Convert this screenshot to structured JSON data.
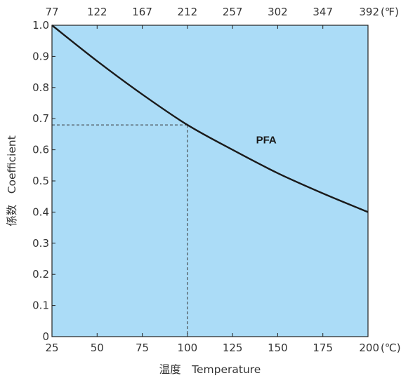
{
  "chart_data": {
    "type": "line",
    "xlabel": "温度　Temperature",
    "ylabel": "係数　Coefficient",
    "xlim": [
      25,
      200
    ],
    "ylim": [
      0,
      1.0
    ],
    "x_ticks": [
      "25",
      "50",
      "75",
      "100",
      "125",
      "150",
      "175",
      "200"
    ],
    "x_unit": "(℃)",
    "x_top_ticks": [
      "77",
      "122",
      "167",
      "212",
      "257",
      "302",
      "347",
      "392"
    ],
    "x_top_unit": "(℉)",
    "y_ticks": [
      "0",
      "0.1",
      "0.2",
      "0.3",
      "0.4",
      "0.5",
      "0.6",
      "0.7",
      "0.8",
      "0.9",
      "1.0"
    ],
    "grid": false,
    "series": [
      {
        "name": "PFA",
        "x": [
          25,
          50,
          75,
          100,
          125,
          150,
          175,
          200
        ],
        "y": [
          1.0,
          0.885,
          0.778,
          0.68,
          0.6,
          0.525,
          0.46,
          0.4
        ]
      }
    ],
    "reference_point": {
      "x": 100,
      "y": 0.68
    },
    "colors": {
      "plot_background": "#abdcf7",
      "line": "#1a1a1a",
      "frame": "#222222"
    }
  }
}
